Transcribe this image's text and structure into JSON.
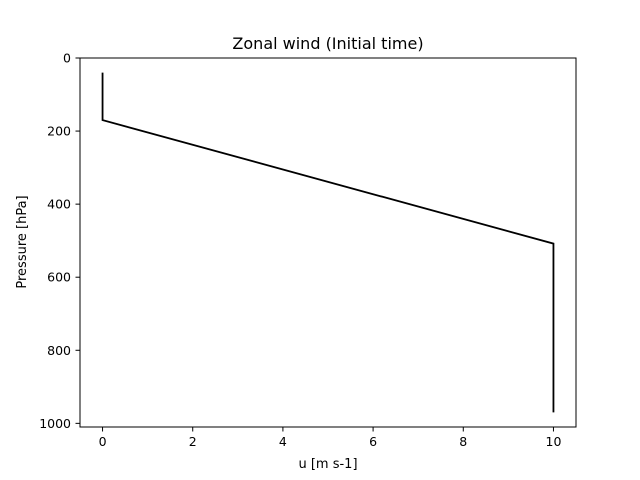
{
  "chart_data": {
    "type": "line",
    "title": "Zonal wind (Initial time)",
    "xlabel": "u [m s-1]",
    "ylabel": "Pressure [hPa]",
    "xlim": [
      -0.5,
      10.5
    ],
    "ylim": [
      1010,
      0
    ],
    "y_inverted": true,
    "grid": false,
    "xticks": [
      "0",
      "2",
      "4",
      "6",
      "8",
      "10"
    ],
    "yticks": [
      "0",
      "200",
      "400",
      "600",
      "800",
      "1000"
    ],
    "series": [
      {
        "color": "#000000",
        "x": [
          0,
          0,
          10,
          10
        ],
        "y": [
          40,
          170,
          508,
          970
        ]
      }
    ]
  }
}
